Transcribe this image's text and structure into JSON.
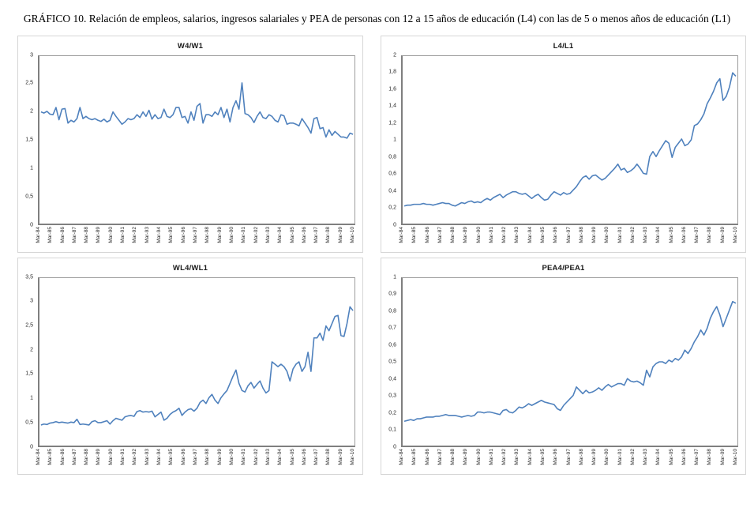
{
  "figure": {
    "title": "GRÁFICO 10. Relación de empleos, salarios, ingresos salariales y PEA de personas con 12 a 15 años de educación (L4) con las de 5 o menos años de educación (L1)"
  },
  "chart_data": {
    "type": "line",
    "layout": "2x2 subplot grid",
    "grid": false,
    "legend": false,
    "line_color": "#4F81BD",
    "frequency": "quarterly",
    "x_tick_labels": [
      "Mar-84",
      "Mar-85",
      "Mar-86",
      "Mar-87",
      "Mar-88",
      "Mar-89",
      "Mar-90",
      "Mar-91",
      "Mar-92",
      "Mar-93",
      "Mar-94",
      "Mar-95",
      "Mar-96",
      "Mar-97",
      "Mar-98",
      "Mar-99",
      "Mar-00",
      "Mar-01",
      "Mar-02",
      "Mar-03",
      "Mar-04",
      "Mar-05",
      "Mar-06",
      "Mar-07",
      "Mar-08",
      "Mar-09",
      "Mar-10"
    ],
    "charts": [
      {
        "title": "W4/W1",
        "ylim": [
          0,
          3
        ],
        "y_ticks": [
          "3",
          "2,5",
          "2",
          "1,5",
          "1",
          "0,5",
          "0"
        ],
        "values": [
          2.0,
          1.98,
          2.01,
          1.96,
          1.95,
          2.08,
          1.86,
          2.05,
          2.06,
          1.8,
          1.85,
          1.82,
          1.88,
          2.08,
          1.88,
          1.92,
          1.88,
          1.86,
          1.88,
          1.85,
          1.83,
          1.87,
          1.82,
          1.85,
          2.0,
          1.92,
          1.85,
          1.78,
          1.82,
          1.88,
          1.86,
          1.88,
          1.95,
          1.9,
          2.0,
          1.92,
          2.03,
          1.87,
          1.95,
          1.88,
          1.9,
          2.05,
          1.92,
          1.9,
          1.95,
          2.08,
          2.08,
          1.9,
          1.92,
          1.8,
          2.0,
          1.85,
          2.1,
          2.15,
          1.8,
          1.95,
          1.95,
          1.92,
          2.0,
          1.95,
          2.08,
          1.9,
          2.05,
          1.82,
          2.08,
          2.2,
          2.05,
          2.52,
          1.97,
          1.95,
          1.9,
          1.81,
          1.92,
          2.0,
          1.9,
          1.88,
          1.95,
          1.92,
          1.85,
          1.82,
          1.95,
          1.93,
          1.78,
          1.8,
          1.8,
          1.78,
          1.75,
          1.88,
          1.8,
          1.72,
          1.62,
          1.88,
          1.9,
          1.7,
          1.72,
          1.55,
          1.68,
          1.58,
          1.65,
          1.6,
          1.55,
          1.55,
          1.53,
          1.62,
          1.6
        ]
      },
      {
        "title": "L4/L1",
        "ylim": [
          0,
          2
        ],
        "y_ticks": [
          "2",
          "1,8",
          "1,6",
          "1,4",
          "1,2",
          "1",
          "0,8",
          "0,6",
          "0,4",
          "0,2",
          "0"
        ],
        "values": [
          0.21,
          0.22,
          0.22,
          0.23,
          0.23,
          0.23,
          0.24,
          0.23,
          0.23,
          0.22,
          0.23,
          0.24,
          0.25,
          0.24,
          0.24,
          0.22,
          0.21,
          0.23,
          0.25,
          0.24,
          0.26,
          0.27,
          0.25,
          0.26,
          0.25,
          0.28,
          0.3,
          0.28,
          0.31,
          0.33,
          0.35,
          0.31,
          0.34,
          0.36,
          0.38,
          0.38,
          0.36,
          0.35,
          0.36,
          0.33,
          0.3,
          0.33,
          0.35,
          0.31,
          0.28,
          0.29,
          0.34,
          0.38,
          0.36,
          0.34,
          0.37,
          0.35,
          0.36,
          0.4,
          0.44,
          0.5,
          0.55,
          0.57,
          0.53,
          0.57,
          0.58,
          0.55,
          0.52,
          0.54,
          0.58,
          0.62,
          0.66,
          0.71,
          0.64,
          0.66,
          0.61,
          0.63,
          0.66,
          0.71,
          0.66,
          0.6,
          0.59,
          0.8,
          0.86,
          0.8,
          0.87,
          0.93,
          0.99,
          0.96,
          0.79,
          0.91,
          0.96,
          1.01,
          0.93,
          0.95,
          1.0,
          1.17,
          1.19,
          1.24,
          1.31,
          1.43,
          1.5,
          1.58,
          1.68,
          1.73,
          1.47,
          1.52,
          1.63,
          1.8,
          1.76
        ]
      },
      {
        "title": "WL4/WL1",
        "ylim": [
          0,
          3.5
        ],
        "y_ticks": [
          "3,5",
          "3",
          "2,5",
          "2",
          "1,5",
          "1",
          "0,5",
          "0"
        ],
        "values": [
          0.43,
          0.45,
          0.44,
          0.47,
          0.48,
          0.5,
          0.48,
          0.49,
          0.48,
          0.47,
          0.49,
          0.48,
          0.55,
          0.44,
          0.45,
          0.44,
          0.43,
          0.5,
          0.52,
          0.48,
          0.48,
          0.5,
          0.52,
          0.45,
          0.52,
          0.57,
          0.55,
          0.53,
          0.6,
          0.62,
          0.63,
          0.61,
          0.71,
          0.73,
          0.7,
          0.71,
          0.7,
          0.72,
          0.6,
          0.65,
          0.7,
          0.53,
          0.57,
          0.65,
          0.7,
          0.73,
          0.78,
          0.63,
          0.7,
          0.75,
          0.77,
          0.72,
          0.78,
          0.9,
          0.95,
          0.88,
          1.0,
          1.07,
          0.95,
          0.88,
          1.0,
          1.08,
          1.15,
          1.3,
          1.45,
          1.58,
          1.3,
          1.15,
          1.12,
          1.25,
          1.32,
          1.2,
          1.28,
          1.35,
          1.2,
          1.1,
          1.15,
          1.75,
          1.7,
          1.65,
          1.7,
          1.65,
          1.55,
          1.35,
          1.6,
          1.7,
          1.75,
          1.55,
          1.65,
          1.95,
          1.55,
          2.25,
          2.25,
          2.35,
          2.2,
          2.5,
          2.4,
          2.55,
          2.7,
          2.72,
          2.3,
          2.28,
          2.55,
          2.9,
          2.82
        ]
      },
      {
        "title": "PEA4/PEA1",
        "ylim": [
          0,
          1
        ],
        "y_ticks": [
          "1",
          "0,9",
          "0,8",
          "0,7",
          "0,6",
          "0,5",
          "0,4",
          "0,3",
          "0,2",
          "0,1",
          "0"
        ],
        "values": [
          0.145,
          0.15,
          0.155,
          0.15,
          0.16,
          0.16,
          0.165,
          0.17,
          0.17,
          0.17,
          0.175,
          0.175,
          0.18,
          0.185,
          0.18,
          0.18,
          0.18,
          0.175,
          0.17,
          0.175,
          0.18,
          0.175,
          0.18,
          0.2,
          0.2,
          0.195,
          0.2,
          0.2,
          0.195,
          0.19,
          0.185,
          0.21,
          0.215,
          0.2,
          0.195,
          0.21,
          0.23,
          0.225,
          0.235,
          0.25,
          0.24,
          0.25,
          0.26,
          0.27,
          0.26,
          0.255,
          0.25,
          0.245,
          0.22,
          0.21,
          0.24,
          0.26,
          0.28,
          0.3,
          0.35,
          0.33,
          0.31,
          0.33,
          0.315,
          0.32,
          0.33,
          0.345,
          0.33,
          0.35,
          0.365,
          0.35,
          0.36,
          0.37,
          0.37,
          0.36,
          0.4,
          0.385,
          0.38,
          0.385,
          0.375,
          0.36,
          0.45,
          0.41,
          0.47,
          0.49,
          0.5,
          0.5,
          0.49,
          0.51,
          0.5,
          0.52,
          0.51,
          0.53,
          0.57,
          0.55,
          0.58,
          0.62,
          0.65,
          0.69,
          0.66,
          0.7,
          0.76,
          0.8,
          0.83,
          0.78,
          0.71,
          0.76,
          0.81,
          0.86,
          0.85
        ]
      }
    ]
  }
}
